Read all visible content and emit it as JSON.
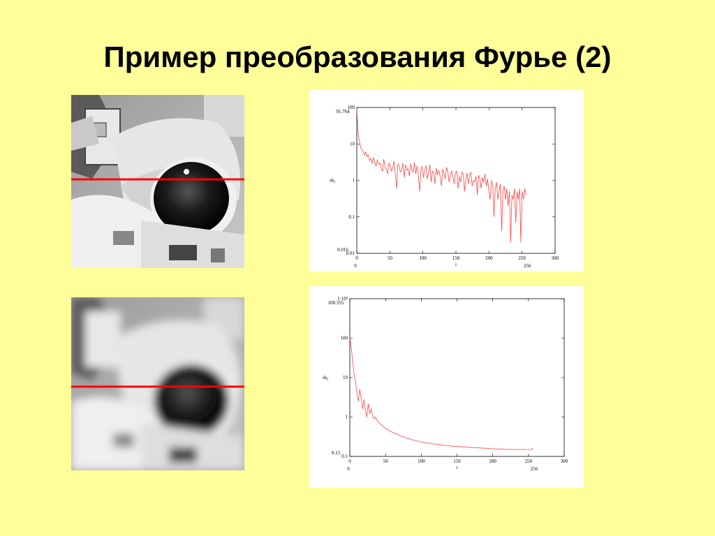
{
  "slide": {
    "title": "Пример преобразования Фурье (2)"
  },
  "colors": {
    "background": "#ffff99",
    "scanline": "#ff0000",
    "plot_line": "#ff4444"
  },
  "images": [
    {
      "name": "astronaut-photo",
      "blurred": false
    },
    {
      "name": "astronaut-photo-blurred",
      "blurred": true
    }
  ],
  "chart_data": [
    {
      "type": "line",
      "scale": "log",
      "xlabel": "i",
      "ylabel": "sk",
      "ylabel_sub": "i",
      "xlim": [
        0,
        300
      ],
      "ylim": [
        0.01,
        100
      ],
      "xticks": [
        "0",
        "50",
        "100",
        "150",
        "200",
        "250",
        "300"
      ],
      "yticks": [
        "100",
        "10",
        "1",
        "0.1",
        "0.01"
      ],
      "x_range_labels": [
        "0",
        "256"
      ],
      "y_range_labels": [
        "91.764",
        "0.016"
      ],
      "x_min": 0,
      "x_max": 256,
      "series": [
        {
          "values": [
            91.764,
            20,
            12,
            8,
            7,
            6,
            5,
            6,
            4.5,
            5,
            3.5,
            4,
            3,
            4.2,
            3.2,
            2.5,
            3.6,
            2.8,
            3,
            2.2,
            1.8,
            3.8,
            2.4,
            2,
            1.5,
            3,
            2.6,
            1.8,
            2.2,
            3.4,
            1.6,
            0.6,
            2.8,
            2.5,
            1.7,
            2,
            3,
            1.2,
            2.7,
            1.9,
            2.1,
            1.3,
            2.8,
            2,
            1.7,
            3.1,
            1.5,
            2.5,
            1.4,
            0.5,
            2,
            2.4,
            1.2,
            1.9,
            2.6,
            1.1,
            1.6,
            2.7,
            0.9,
            1.8,
            1.6,
            0.8,
            2.2,
            1.4,
            1.9,
            1.3,
            0.7,
            2,
            1.6,
            1.1,
            2.3,
            1.7,
            0.9,
            1.4,
            1.8,
            1.3,
            0.8,
            1.6,
            1.8,
            0.6,
            1.3,
            0.9,
            1.7,
            1.5,
            0.5,
            1.1,
            1.6,
            0.8,
            1.4,
            1.7,
            0.7,
            1,
            0.9,
            1.3,
            0.4,
            1.4,
            1.1,
            0.6,
            1.2,
            0.9,
            1.5,
            0.7,
            1.1,
            0.5,
            0.3,
            1,
            0.8,
            0.1,
            0.6,
            0.9,
            0.3,
            0.5,
            0.8,
            0.04,
            0.5,
            0.7,
            0.3,
            0.6,
            0.2,
            0.5,
            0.02,
            0.4,
            0.3,
            0.6,
            0.07,
            0.5,
            0.3,
            0.6,
            0.02,
            0.5,
            0.3,
            0.6,
            0.4
          ]
        }
      ]
    },
    {
      "type": "line",
      "scale": "log",
      "xlabel": "i",
      "ylabel": "sk",
      "ylabel_sub": "i",
      "xlim": [
        0,
        300
      ],
      "ylim": [
        0.1,
        1000
      ],
      "xticks": [
        "0",
        "50",
        "100",
        "150",
        "200",
        "250",
        "300"
      ],
      "yticks": [
        "1·10³",
        "100",
        "10",
        "1",
        "0.1"
      ],
      "x_range_labels": [
        "0",
        "256"
      ],
      "y_range_labels": [
        "100.355",
        "0.15"
      ],
      "x_min": 0,
      "x_max": 256,
      "series": [
        {
          "values": [
            100.355,
            60,
            25,
            12,
            8,
            4,
            2.5,
            5,
            3,
            1.6,
            2.8,
            1.5,
            1,
            2.2,
            1.2,
            1.6,
            1.1,
            0.9,
            1,
            0.85,
            0.75,
            0.7,
            0.65,
            0.6,
            0.55,
            0.52,
            0.5,
            0.47,
            0.45,
            0.43,
            0.41,
            0.4,
            0.38,
            0.37,
            0.36,
            0.34,
            0.33,
            0.32,
            0.31,
            0.3,
            0.29,
            0.285,
            0.28,
            0.27,
            0.265,
            0.26,
            0.255,
            0.25,
            0.245,
            0.24,
            0.235,
            0.23,
            0.228,
            0.225,
            0.222,
            0.22,
            0.218,
            0.215,
            0.21,
            0.208,
            0.205,
            0.2,
            0.21,
            0.198,
            0.195,
            0.2,
            0.19,
            0.192,
            0.188,
            0.185,
            0.19,
            0.183,
            0.18,
            0.186,
            0.178,
            0.182,
            0.176,
            0.18,
            0.174,
            0.178,
            0.172,
            0.176,
            0.17,
            0.174,
            0.168,
            0.172,
            0.166,
            0.17,
            0.165,
            0.168,
            0.164,
            0.167,
            0.162,
            0.166,
            0.16,
            0.164,
            0.158,
            0.163,
            0.157,
            0.16,
            0.155,
            0.158,
            0.154,
            0.157,
            0.153,
            0.156,
            0.152,
            0.155,
            0.151,
            0.154,
            0.15,
            0.153,
            0.15,
            0.152,
            0.15,
            0.151,
            0.15,
            0.15,
            0.15,
            0.152,
            0.15,
            0.151,
            0.15,
            0.152,
            0.15,
            0.15,
            0.151,
            0.15,
            0.15,
            0.16
          ]
        }
      ]
    }
  ]
}
